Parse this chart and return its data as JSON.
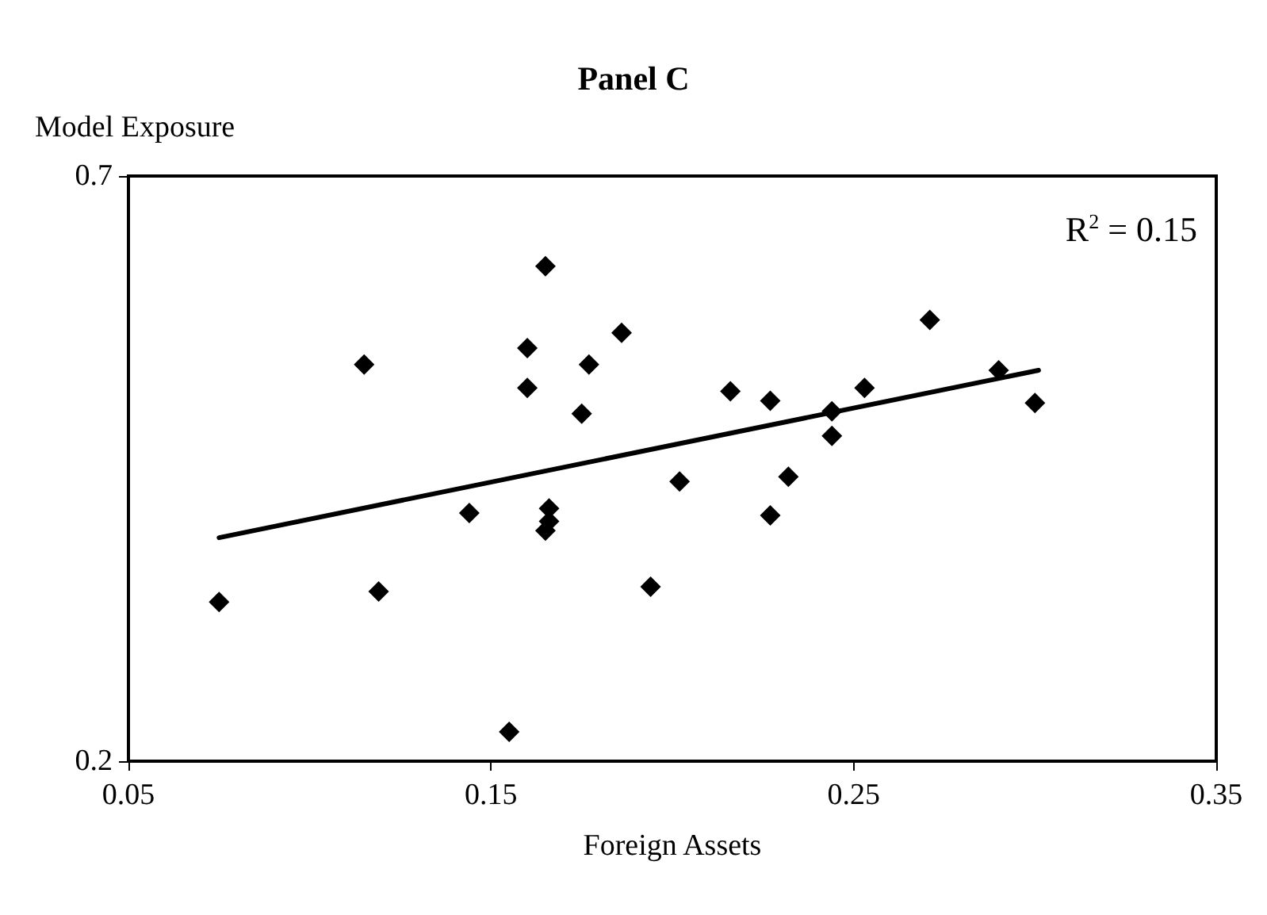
{
  "chart_data": {
    "type": "scatter",
    "title": "Panel C",
    "xlabel": "Foreign Assets",
    "ylabel": "Model Exposure",
    "annotations": [
      "R$^{2}$ = 0.15"
    ],
    "xlim": [
      0.05,
      0.35
    ],
    "xticks": [
      0.05,
      0.15,
      0.25,
      0.35
    ],
    "ylim": [
      0.2,
      0.7
    ],
    "yticks": [
      0.2,
      0.7
    ],
    "series": [
      {
        "marker": "diamond",
        "color": "#000000",
        "x": [
          0.075,
          0.115,
          0.119,
          0.144,
          0.155,
          0.16,
          0.16,
          0.165,
          0.166,
          0.166,
          0.165,
          0.177,
          0.175,
          0.186,
          0.194,
          0.202,
          0.216,
          0.227,
          0.227,
          0.232,
          0.244,
          0.244,
          0.253,
          0.271,
          0.29,
          0.3
        ],
        "values": [
          0.336,
          0.539,
          0.345,
          0.412,
          0.225,
          0.553,
          0.519,
          0.623,
          0.416,
          0.405,
          0.397,
          0.539,
          0.497,
          0.566,
          0.349,
          0.439,
          0.516,
          0.508,
          0.41,
          0.443,
          0.499,
          0.478,
          0.519,
          0.577,
          0.534,
          0.506
        ]
      },
      {
        "type": "line",
        "marker": "none",
        "line_style": "solid",
        "color": "#000000",
        "x": [
          0.075,
          0.301
        ],
        "values": [
          0.391,
          0.534
        ]
      }
    ]
  }
}
